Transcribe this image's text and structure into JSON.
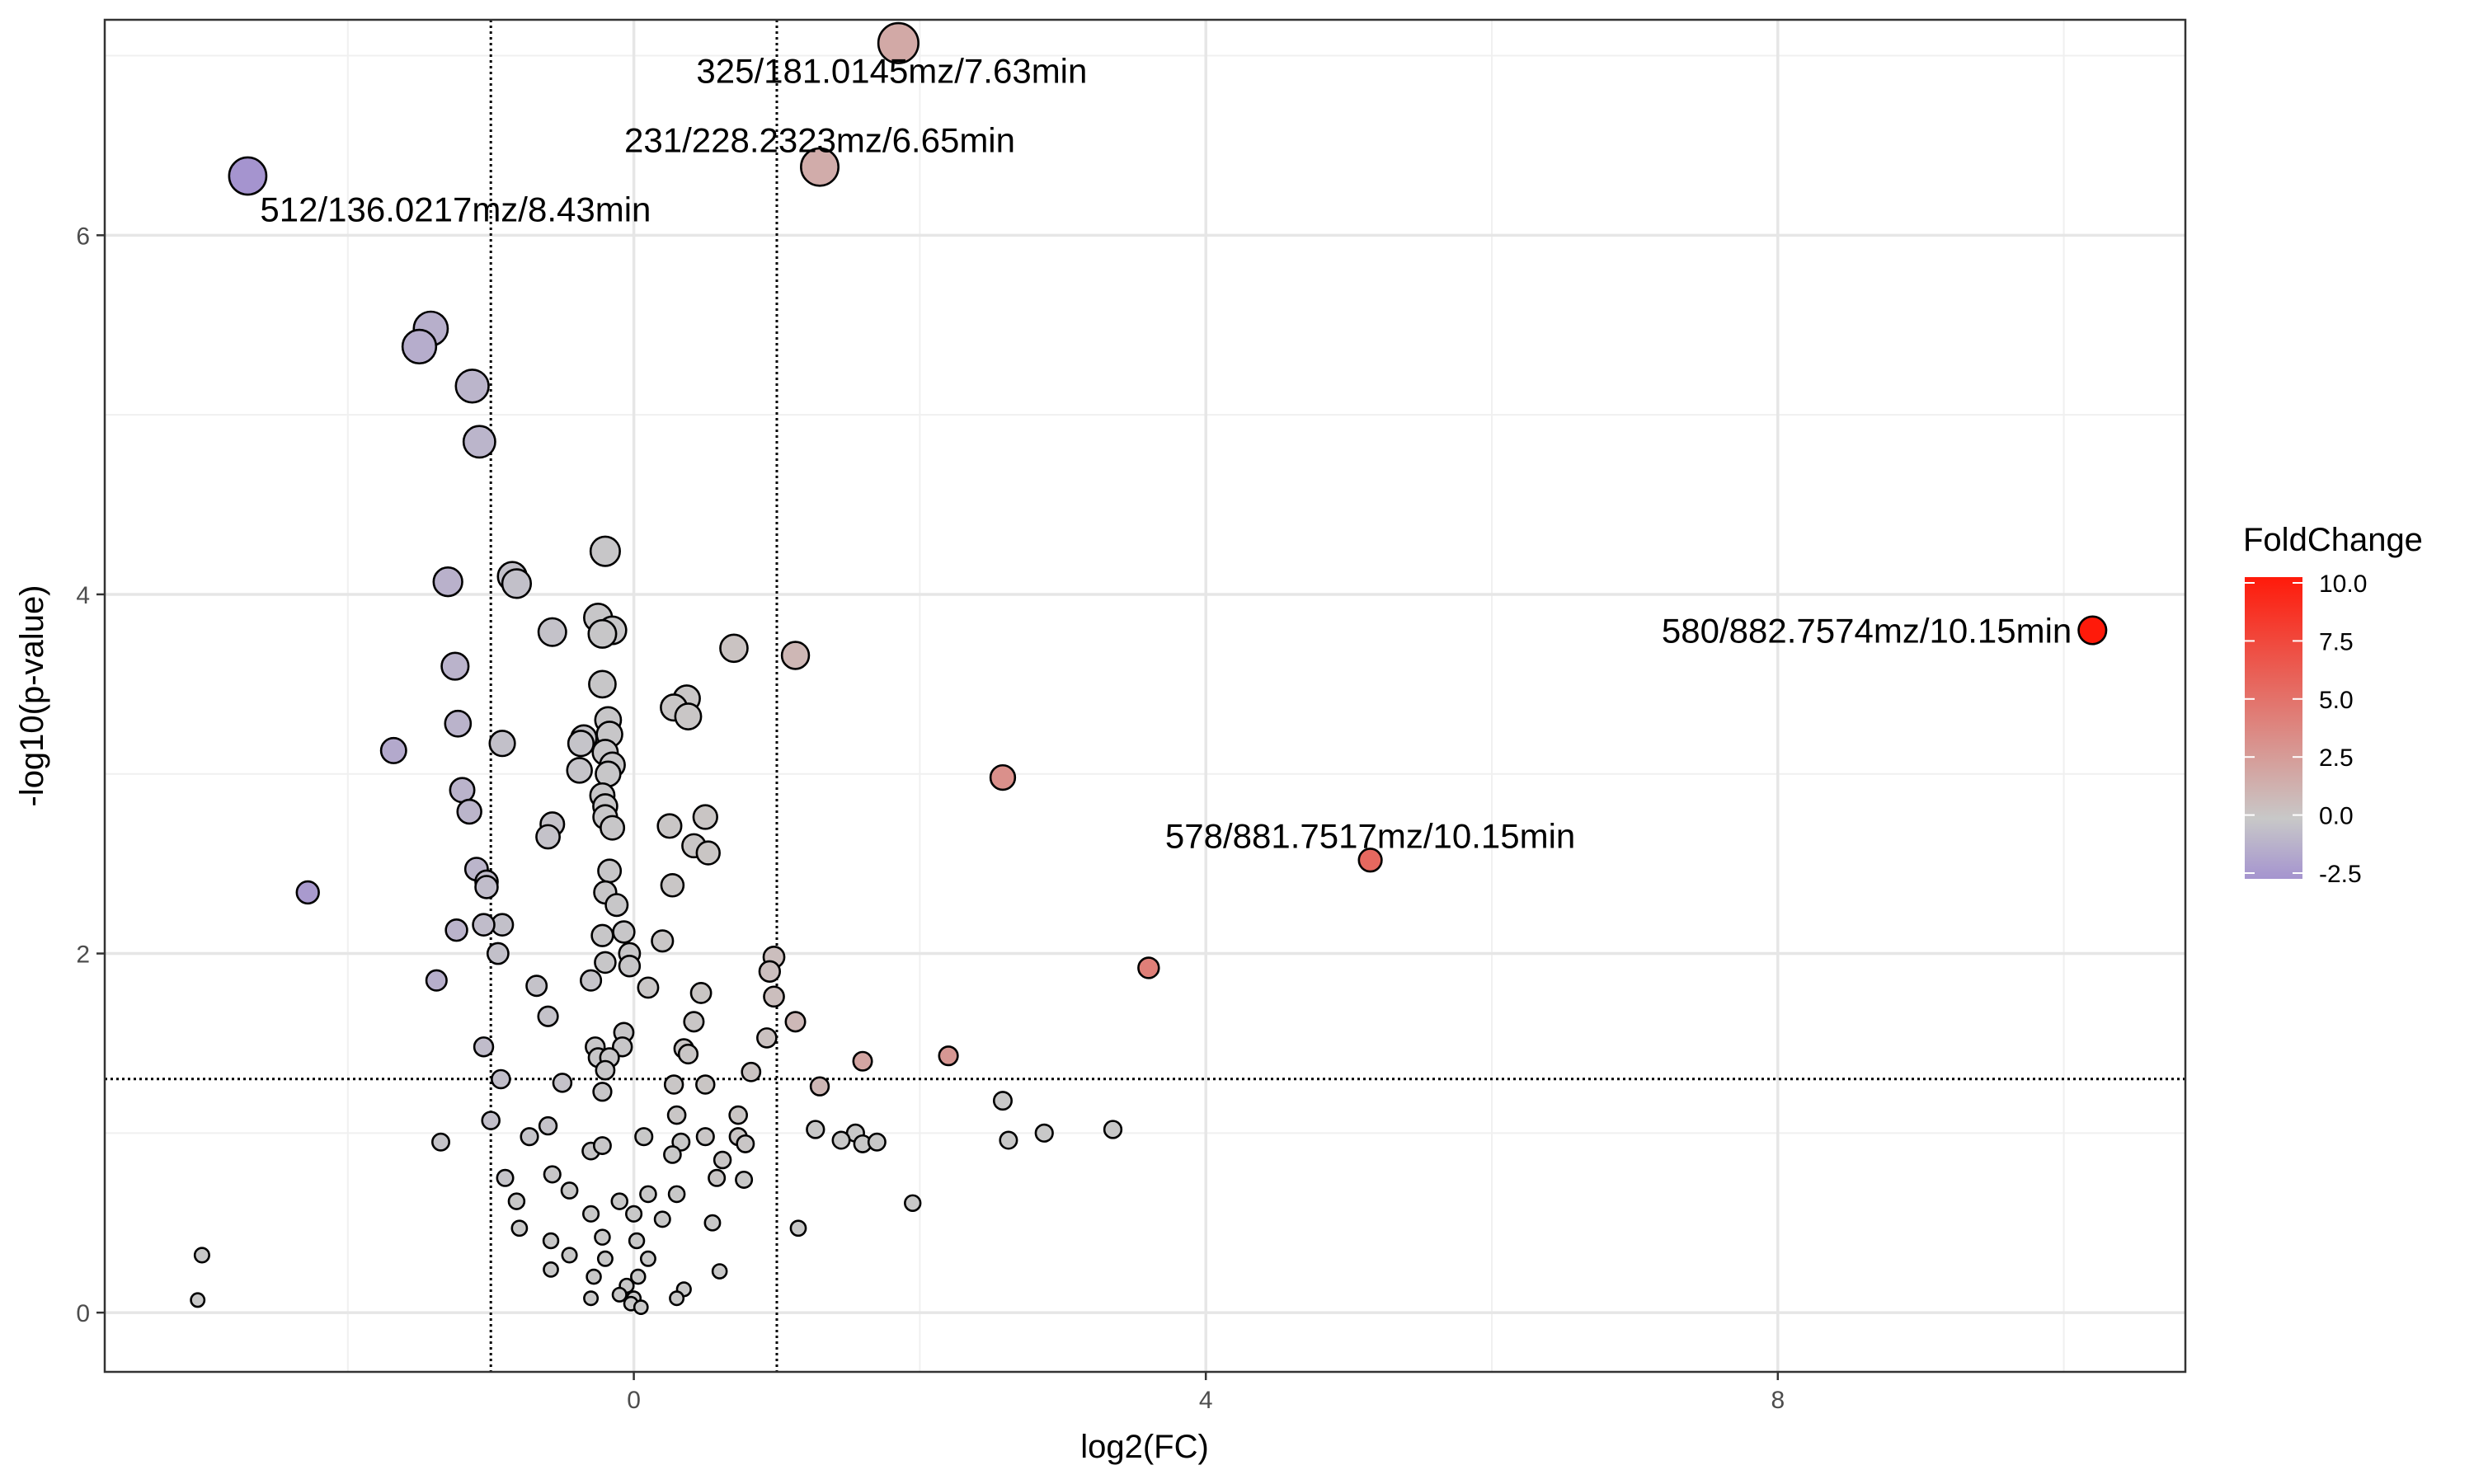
{
  "chart_data": {
    "type": "scatter",
    "title": "",
    "xlabel": "log2(FC)",
    "ylabel": "-log10(p-value)",
    "xlim": [
      -3.7,
      10.85
    ],
    "ylim": [
      -0.33,
      7.2
    ],
    "x_ticks": [
      0,
      4,
      8
    ],
    "y_ticks": [
      0,
      2,
      4,
      6
    ],
    "grid": true,
    "reference_lines": {
      "vertical": [
        -1,
        1
      ],
      "horizontal": [
        1.301
      ]
    },
    "legend": {
      "title": "FoldChange",
      "position": "right",
      "range": [
        -2.5,
        10.0
      ],
      "ticks": [
        "10.0",
        "7.5",
        "5.0",
        "2.5",
        "0.0",
        "-2.5"
      ],
      "colors": {
        "low": "#a594cf",
        "mid": "#c8c8c8",
        "high": "#ff1a0a"
      }
    },
    "annotations": [
      {
        "text": "325/181.0145mz/7.63min",
        "x": 1.85,
        "y": 7.07
      },
      {
        "text": "231/228.2323mz/6.65min",
        "x": 1.3,
        "y": 6.38
      },
      {
        "text": "512/136.0217mz/8.43min",
        "x": -2.7,
        "y": 6.33
      },
      {
        "text": "580/882.7574mz/10.15min",
        "x": 10.2,
        "y": 3.8
      },
      {
        "text": "578/881.7517mz/10.15min",
        "x": 5.15,
        "y": 2.52
      }
    ],
    "points": [
      [
        1.85,
        7.07,
        1.8
      ],
      [
        1.3,
        6.38,
        1.6
      ],
      [
        -2.7,
        6.33,
        -2.5
      ],
      [
        -1.42,
        5.48,
        -1.2
      ],
      [
        -1.5,
        5.38,
        -1.3
      ],
      [
        -1.13,
        5.16,
        -0.9
      ],
      [
        -1.08,
        4.85,
        -0.9
      ],
      [
        -0.2,
        4.24,
        -0.1
      ],
      [
        -1.3,
        4.07,
        -1.1
      ],
      [
        -0.85,
        4.1,
        -0.4
      ],
      [
        -0.82,
        4.06,
        -0.4
      ],
      [
        -0.25,
        3.87,
        -0.1
      ],
      [
        -0.15,
        3.8,
        -0.1
      ],
      [
        -0.22,
        3.78,
        -0.1
      ],
      [
        -0.57,
        3.79,
        -0.3
      ],
      [
        0.7,
        3.7,
        0.3
      ],
      [
        1.13,
        3.66,
        1.0
      ],
      [
        -1.25,
        3.6,
        -1.0
      ],
      [
        -0.22,
        3.5,
        -0.1
      ],
      [
        0.37,
        3.42,
        0.1
      ],
      [
        0.28,
        3.37,
        0.1
      ],
      [
        0.38,
        3.32,
        0.1
      ],
      [
        -0.18,
        3.3,
        -0.1
      ],
      [
        -1.23,
        3.28,
        -1.0
      ],
      [
        -0.35,
        3.2,
        -0.2
      ],
      [
        -0.37,
        3.17,
        -0.2
      ],
      [
        -0.92,
        3.17,
        -0.4
      ],
      [
        -0.17,
        3.22,
        -0.1
      ],
      [
        -1.68,
        3.13,
        -1.5
      ],
      [
        -0.2,
        3.12,
        -0.1
      ],
      [
        -0.15,
        3.05,
        -0.1
      ],
      [
        -0.38,
        3.02,
        -0.2
      ],
      [
        -0.18,
        3.0,
        -0.1
      ],
      [
        2.58,
        2.98,
        3.2
      ],
      [
        -1.2,
        2.91,
        -1.0
      ],
      [
        -0.22,
        2.88,
        -0.1
      ],
      [
        -0.2,
        2.82,
        -0.1
      ],
      [
        -1.15,
        2.79,
        -0.9
      ],
      [
        -0.2,
        2.76,
        -0.1
      ],
      [
        0.5,
        2.76,
        0.2
      ],
      [
        -0.57,
        2.72,
        -0.3
      ],
      [
        0.25,
        2.71,
        0.1
      ],
      [
        -0.15,
        2.7,
        -0.1
      ],
      [
        -0.6,
        2.65,
        -0.3
      ],
      [
        0.42,
        2.6,
        0.1
      ],
      [
        0.52,
        2.56,
        0.2
      ],
      [
        5.15,
        2.52,
        5.5
      ],
      [
        -1.1,
        2.47,
        -0.9
      ],
      [
        -0.17,
        2.46,
        -0.1
      ],
      [
        -1.03,
        2.4,
        -0.6
      ],
      [
        -1.03,
        2.37,
        -0.6
      ],
      [
        0.27,
        2.38,
        0.1
      ],
      [
        -2.28,
        2.34,
        -2.2
      ],
      [
        -0.2,
        2.34,
        -0.1
      ],
      [
        -0.12,
        2.27,
        -0.1
      ],
      [
        -0.92,
        2.16,
        -0.4
      ],
      [
        -1.05,
        2.16,
        -0.6
      ],
      [
        -1.24,
        2.13,
        -1.0
      ],
      [
        -0.07,
        2.12,
        -0.1
      ],
      [
        -0.22,
        2.1,
        -0.1
      ],
      [
        0.2,
        2.07,
        0.1
      ],
      [
        -0.95,
        2.0,
        -0.4
      ],
      [
        -0.03,
        2.0,
        -0.1
      ],
      [
        0.98,
        1.98,
        0.6
      ],
      [
        -0.2,
        1.95,
        -0.1
      ],
      [
        -0.03,
        1.93,
        -0.1
      ],
      [
        0.95,
        1.9,
        0.5
      ],
      [
        3.6,
        1.92,
        4.2
      ],
      [
        -1.38,
        1.85,
        -1.2
      ],
      [
        -0.3,
        1.85,
        -0.2
      ],
      [
        0.1,
        1.81,
        0.1
      ],
      [
        -0.68,
        1.82,
        -0.3
      ],
      [
        0.47,
        1.78,
        0.2
      ],
      [
        0.98,
        1.76,
        0.6
      ],
      [
        -0.6,
        1.65,
        -0.3
      ],
      [
        0.42,
        1.62,
        0.1
      ],
      [
        1.13,
        1.62,
        0.9
      ],
      [
        -0.07,
        1.56,
        -0.1
      ],
      [
        0.93,
        1.53,
        0.4
      ],
      [
        -1.05,
        1.48,
        -0.6
      ],
      [
        -0.27,
        1.48,
        -0.1
      ],
      [
        -0.08,
        1.48,
        -0.1
      ],
      [
        0.35,
        1.47,
        0.1
      ],
      [
        0.38,
        1.44,
        0.1
      ],
      [
        -0.25,
        1.42,
        -0.1
      ],
      [
        -0.17,
        1.42,
        -0.1
      ],
      [
        1.6,
        1.4,
        2.0
      ],
      [
        2.2,
        1.43,
        2.8
      ],
      [
        -0.2,
        1.35,
        -0.1
      ],
      [
        0.82,
        1.34,
        0.3
      ],
      [
        -0.93,
        1.3,
        -0.5
      ],
      [
        -0.5,
        1.28,
        -0.3
      ],
      [
        -0.22,
        1.23,
        -0.1
      ],
      [
        0.28,
        1.27,
        0.1
      ],
      [
        0.5,
        1.27,
        0.2
      ],
      [
        1.3,
        1.26,
        1.0
      ],
      [
        2.58,
        1.18,
        0.0
      ],
      [
        -1.0,
        1.07,
        -0.5
      ],
      [
        0.3,
        1.1,
        0.1
      ],
      [
        0.73,
        1.1,
        0.2
      ],
      [
        -0.6,
        1.04,
        -0.3
      ],
      [
        1.27,
        1.02,
        0.0
      ],
      [
        1.55,
        1.0,
        0.0
      ],
      [
        1.45,
        0.96,
        0.0
      ],
      [
        2.62,
        0.96,
        0.0
      ],
      [
        2.87,
        1.0,
        0.0
      ],
      [
        3.35,
        1.02,
        0.0
      ],
      [
        -1.35,
        0.95,
        -0.2
      ],
      [
        -0.73,
        0.98,
        -0.2
      ],
      [
        0.07,
        0.98,
        0.0
      ],
      [
        0.33,
        0.95,
        0.0
      ],
      [
        0.5,
        0.98,
        0.1
      ],
      [
        0.73,
        0.98,
        0.2
      ],
      [
        0.78,
        0.94,
        0.1
      ],
      [
        1.6,
        0.94,
        0.0
      ],
      [
        1.7,
        0.95,
        0.0
      ],
      [
        -0.3,
        0.9,
        -0.1
      ],
      [
        -0.22,
        0.93,
        -0.1
      ],
      [
        0.27,
        0.88,
        0.0
      ],
      [
        0.62,
        0.85,
        0.1
      ],
      [
        -0.9,
        0.75,
        -0.2
      ],
      [
        -0.57,
        0.77,
        -0.1
      ],
      [
        0.58,
        0.75,
        0.1
      ],
      [
        0.77,
        0.74,
        0.0
      ],
      [
        -0.82,
        0.62,
        0.0
      ],
      [
        -0.45,
        0.68,
        0.0
      ],
      [
        -0.1,
        0.62,
        0.0
      ],
      [
        0.1,
        0.66,
        0.0
      ],
      [
        0.3,
        0.66,
        0.0
      ],
      [
        1.95,
        0.61,
        0.0
      ],
      [
        -0.3,
        0.55,
        0.0
      ],
      [
        0.0,
        0.55,
        0.0
      ],
      [
        0.2,
        0.52,
        0.0
      ],
      [
        0.55,
        0.5,
        0.0
      ],
      [
        1.15,
        0.47,
        0.0
      ],
      [
        -0.8,
        0.47,
        0.0
      ],
      [
        -0.58,
        0.4,
        0.0
      ],
      [
        -0.22,
        0.42,
        0.0
      ],
      [
        0.02,
        0.4,
        0.0
      ],
      [
        -0.45,
        0.32,
        0.0
      ],
      [
        -0.2,
        0.3,
        0.0
      ],
      [
        0.1,
        0.3,
        0.0
      ],
      [
        -3.02,
        0.32,
        0.0
      ],
      [
        -0.58,
        0.24,
        0.0
      ],
      [
        -0.28,
        0.2,
        0.0
      ],
      [
        0.03,
        0.2,
        0.0
      ],
      [
        0.6,
        0.23,
        0.0
      ],
      [
        -0.05,
        0.15,
        0.0
      ],
      [
        0.35,
        0.13,
        0.0
      ],
      [
        -0.1,
        0.1,
        0.0
      ],
      [
        0.0,
        0.08,
        0.0
      ],
      [
        -0.3,
        0.08,
        0.0
      ],
      [
        0.3,
        0.08,
        0.0
      ],
      [
        -3.05,
        0.07,
        0.0
      ],
      [
        -0.02,
        0.05,
        0.0
      ],
      [
        0.05,
        0.03,
        0.0
      ],
      [
        10.2,
        3.8,
        10.0
      ]
    ]
  }
}
